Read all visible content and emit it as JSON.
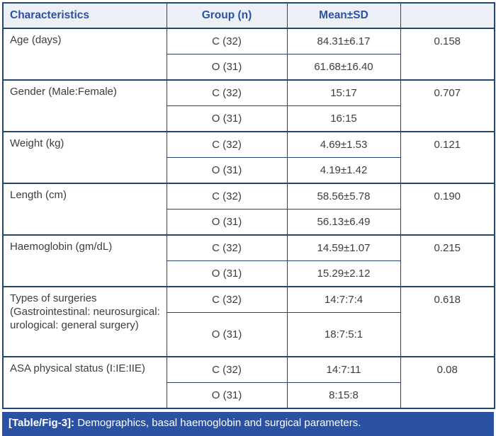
{
  "colors": {
    "border_navy": "#24456e",
    "header_bg": "#edeff6",
    "header_text_blue": "#2b52a2",
    "caption_bar_bg": "#2b52a2",
    "caption_text": "#ffffff",
    "body_text": "#3d3d3d"
  },
  "table": {
    "headers": {
      "characteristics": "Characteristics",
      "group": "Group (n)",
      "mean_sd": "Mean±SD",
      "p_value": ""
    },
    "rows": [
      {
        "characteristic": "Age (days)",
        "p": "0.158",
        "sub": [
          {
            "group": "C (32)",
            "mean": "84.31±6.17"
          },
          {
            "group": "O (31)",
            "mean": "61.68±16.40"
          }
        ]
      },
      {
        "characteristic": "Gender (Male:Female)",
        "p": "0.707",
        "sub": [
          {
            "group": "C (32)",
            "mean": "15:17"
          },
          {
            "group": "O (31)",
            "mean": "16:15"
          }
        ]
      },
      {
        "characteristic": "Weight (kg)",
        "p": "0.121",
        "sub": [
          {
            "group": "C (32)",
            "mean": "4.69±1.53"
          },
          {
            "group": "O (31)",
            "mean": "4.19±1.42"
          }
        ]
      },
      {
        "characteristic": "Length (cm)",
        "p": "0.190",
        "sub": [
          {
            "group": "C (32)",
            "mean": "58.56±5.78"
          },
          {
            "group": "O (31)",
            "mean": "56.13±6.49"
          }
        ]
      },
      {
        "characteristic": "Haemoglobin (gm/dL)",
        "p": "0.215",
        "sub": [
          {
            "group": "C (32)",
            "mean": "14.59±1.07"
          },
          {
            "group": "O (31)",
            "mean": "15.29±2.12"
          }
        ]
      },
      {
        "characteristic": "Types of surgeries (Gastrointestinal: neurosurgical: urological: general surgery)",
        "p": "0.618",
        "sub": [
          {
            "group": "C (32)",
            "mean": "14:7:7:4"
          },
          {
            "group": "O (31)",
            "mean": "18:7:5:1"
          }
        ]
      },
      {
        "characteristic": "ASA physical status (I:IE:IIE)",
        "p": "0.08",
        "sub": [
          {
            "group": "C (32)",
            "mean": "14:7:11"
          },
          {
            "group": "O (31)",
            "mean": "8:15:8"
          }
        ]
      }
    ]
  },
  "caption": {
    "label": "[Table/Fig-3]:",
    "text": " Demographics, basal haemoglobin and surgical parameters."
  }
}
